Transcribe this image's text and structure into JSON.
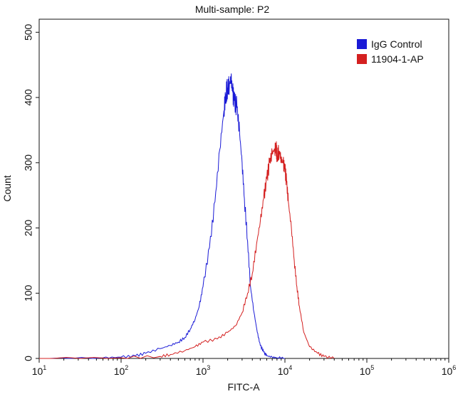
{
  "chart_data": {
    "type": "line",
    "title": "Multi-sample: P2",
    "xlabel": "FITC-A",
    "ylabel": "Count",
    "x_scale": "log",
    "xlim": [
      10,
      1000000
    ],
    "ylim": [
      0,
      520
    ],
    "x_ticks": [
      {
        "value": 10,
        "base": "10",
        "exp": "1"
      },
      {
        "value": 100,
        "base": "10",
        "exp": "2"
      },
      {
        "value": 1000,
        "base": "10",
        "exp": "3"
      },
      {
        "value": 10000,
        "base": "10",
        "exp": "4"
      },
      {
        "value": 100000,
        "base": "10",
        "exp": "5"
      },
      {
        "value": 1000000,
        "base": "10",
        "exp": "6"
      }
    ],
    "y_ticks": [
      0,
      100,
      200,
      300,
      400,
      500
    ],
    "legend_position": "top-right",
    "series": [
      {
        "name": "IgG Control",
        "color": "#1a1ad6",
        "x": [
          10,
          60,
          100,
          150,
          200,
          300,
          400,
          500,
          600,
          700,
          800,
          900,
          1000,
          1200,
          1400,
          1600,
          1800,
          1900,
          2000,
          2100,
          2200,
          2300,
          2400,
          2600,
          2800,
          3000,
          3200,
          3500,
          3800,
          4200,
          4600,
          5000,
          5500,
          6000,
          7000,
          8000,
          10000
        ],
        "y": [
          0,
          1,
          2,
          4,
          8,
          15,
          20,
          25,
          32,
          45,
          60,
          80,
          110,
          170,
          240,
          320,
          380,
          405,
          415,
          420,
          430,
          408,
          395,
          385,
          345,
          300,
          245,
          180,
          110,
          70,
          40,
          20,
          10,
          4,
          2,
          1,
          0
        ]
      },
      {
        "name": "11904-1-AP",
        "color": "#d42020",
        "x": [
          10,
          100,
          300,
          400,
          600,
          800,
          1000,
          1500,
          2000,
          2500,
          3000,
          3500,
          4000,
          4500,
          5000,
          5500,
          6000,
          6500,
          7000,
          7500,
          7800,
          8000,
          8500,
          9000,
          9500,
          10000,
          10500,
          11000,
          12000,
          13000,
          14000,
          15000,
          17000,
          20000,
          25000,
          30000,
          40000
        ],
        "y": [
          0,
          1,
          3,
          6,
          12,
          18,
          25,
          30,
          40,
          50,
          70,
          100,
          130,
          175,
          210,
          245,
          275,
          300,
          315,
          320,
          325,
          310,
          318,
          305,
          300,
          290,
          270,
          240,
          200,
          150,
          110,
          80,
          40,
          18,
          8,
          3,
          0
        ]
      }
    ]
  },
  "colors": {
    "axis": "#111111",
    "background": "#ffffff"
  }
}
